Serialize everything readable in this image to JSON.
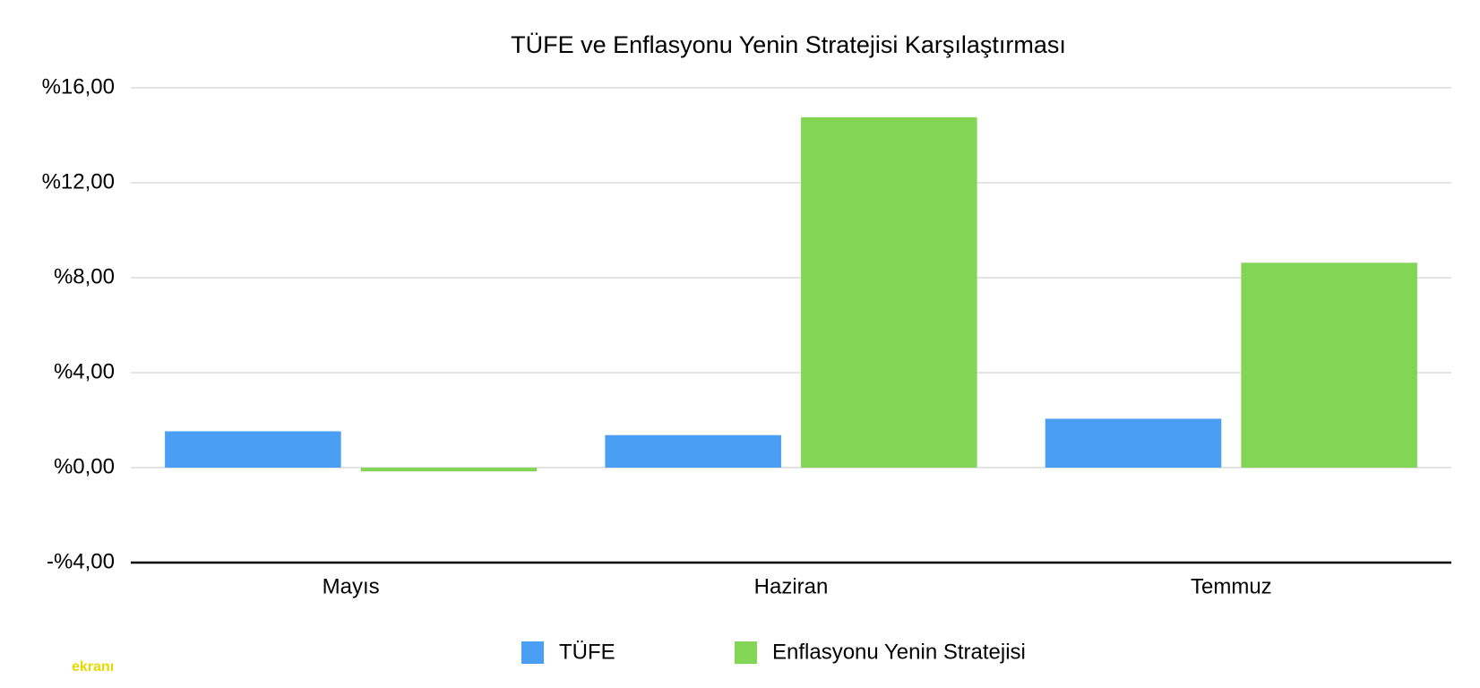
{
  "chart_data": {
    "type": "bar",
    "title": "TÜFE ve Enflasyonu Yenin Stratejisi Karşılaştırması",
    "categories": [
      "Mayıs",
      "Haziran",
      "Temmuz"
    ],
    "series": [
      {
        "name": "TÜFE",
        "color": "#4a9ff5",
        "values": [
          1.53,
          1.37,
          2.06
        ]
      },
      {
        "name": "Enflasyonu Yenin Stratejisi",
        "color": "#83d655",
        "values": [
          -0.16,
          14.76,
          8.63
        ]
      }
    ],
    "ylim": [
      -4,
      16
    ],
    "yticks": [
      {
        "value": -4,
        "label": "-%4,00"
      },
      {
        "value": 0,
        "label": "%0,00"
      },
      {
        "value": 4,
        "label": "%4,00"
      },
      {
        "value": 8,
        "label": "%8,00"
      },
      {
        "value": 12,
        "label": "%12,00"
      },
      {
        "value": 16,
        "label": "%16,00"
      }
    ],
    "grid": true,
    "legend": "bottom",
    "watermark": "ekranı"
  }
}
